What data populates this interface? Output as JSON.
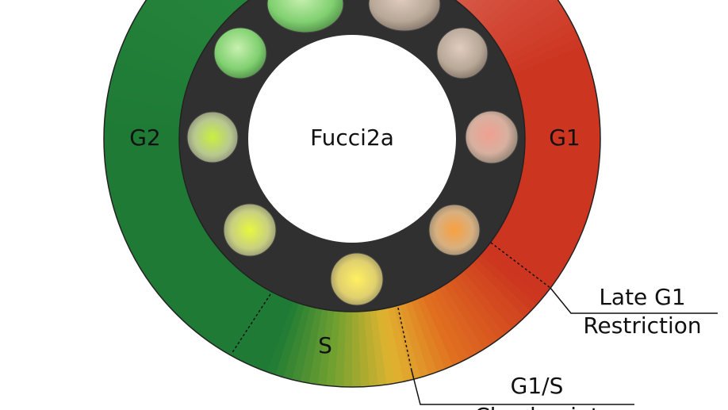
{
  "diagram": {
    "center_label": "Fucci2a",
    "phases": {
      "g2": "G2",
      "g1": "G1",
      "s": "S"
    },
    "annotations": [
      {
        "lines": [
          "Late G1",
          "Restriction"
        ]
      },
      {
        "lines": [
          "G1/S",
          "Checkpoint"
        ]
      }
    ]
  }
}
